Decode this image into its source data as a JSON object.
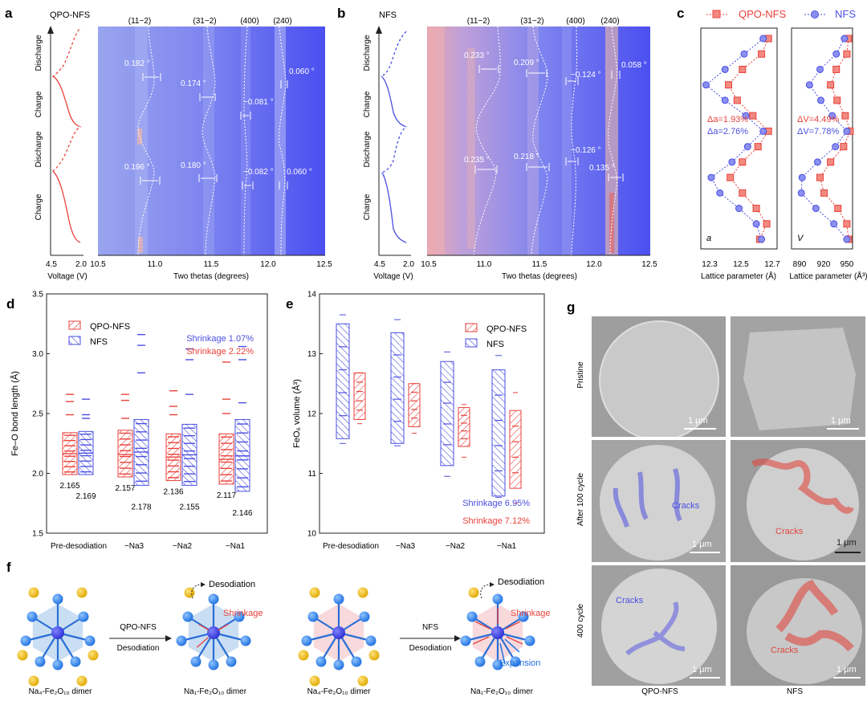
{
  "panels": {
    "a": {
      "letter": "a",
      "sample": "QPO-NFS",
      "peaks": [
        "(11−2)",
        "(31−2)",
        "(400)",
        "(240)"
      ],
      "states": [
        "Discharge",
        "Charge",
        "Discharge",
        "Charge"
      ],
      "voltage_ticks": [
        "4.5",
        "2.0"
      ],
      "voltage_label": "Voltage (V)",
      "theta_ticks": [
        "10.5",
        "11.0",
        "11.5",
        "12.0",
        "12.5"
      ],
      "theta_label": "Two thetas (degrees)",
      "shifts": [
        "0.182 °",
        "0.174 °",
        "−0.081 °",
        "0.060 °",
        "0.196 °",
        "0.180 °",
        "−0.082 °",
        "0.060 °"
      ]
    },
    "b": {
      "letter": "b",
      "sample": "NFS",
      "peaks": [
        "(11−2)",
        "(31−2)",
        "(400)",
        "(240)"
      ],
      "states": [
        "Discharge",
        "Charge",
        "Discharge",
        "Charge"
      ],
      "voltage_ticks": [
        "4.5",
        "2.0"
      ],
      "voltage_label": "Voltage (V)",
      "theta_ticks": [
        "10.5",
        "11.0",
        "11.5",
        "12.0",
        "12.5"
      ],
      "theta_label": "Two thetas (degrees)",
      "shifts": [
        "0.233 °",
        "0.209 °",
        "−0.124 °",
        "0.058 °",
        "0.235 °",
        "0.218 °",
        "−0.126 °",
        "0.135 °"
      ]
    },
    "c": {
      "letter": "c",
      "legend": [
        "QPO-NFS",
        "NFS"
      ],
      "left": {
        "ticks": [
          "12.3",
          "12.5",
          "12.7"
        ],
        "xlabel": "Lattice parameter (Å)",
        "corner": "a",
        "deltas": [
          "Δa=1.93%",
          "Δa=2.76%"
        ]
      },
      "right": {
        "ticks": [
          "890",
          "920",
          "950"
        ],
        "xlabel": "Lattice parameter (Å³)",
        "corner": "V",
        "deltas": [
          "ΔV=4.49%",
          "ΔV=7.78%"
        ]
      }
    },
    "d": {
      "letter": "d",
      "ylabel": "Fe–O bond length (Å)",
      "yticks": [
        "1.5",
        "2.0",
        "2.5",
        "3.0",
        "3.5"
      ],
      "categories": [
        "Pre-desodiation",
        "−Na3",
        "−Na2",
        "−Na1"
      ],
      "legend": [
        "QPO-NFS",
        "NFS"
      ],
      "shrink_nfs": "Shrinkage 1.07%",
      "shrink_qpo": "Shrinkage 2.22%",
      "qpo_means": [
        "2.165",
        "2.157",
        "2.136",
        "2.117"
      ],
      "nfs_means": [
        "2.169",
        "2.178",
        "2.155",
        "2.146"
      ]
    },
    "e": {
      "letter": "e",
      "ylabel": "FeO₆ volume (Å³)",
      "yticks": [
        "10",
        "11",
        "12",
        "13",
        "14"
      ],
      "categories": [
        "Pre-desodiation",
        "−Na3",
        "−Na2",
        "−Na1"
      ],
      "legend": [
        "QPO-NFS",
        "NFS"
      ],
      "shrink_nfs": "Shrinkage 6.95%",
      "shrink_qpo": "Shrinkage 7.12%"
    },
    "f": {
      "letter": "f",
      "arrow1_top": "QPO-NFS",
      "arrow1_bottom": "Desodiation",
      "arrow2_top": "NFS",
      "arrow2_bottom": "Desodiation",
      "desodiation": "Desodiation",
      "shrinkage": "Shrinkage",
      "expansion": "Expansion",
      "captions": [
        "Na₄-Fe₂O₁₀ dimer",
        "Na₁-Fe₂O₁₀ dimer",
        "Na₄-Fe₂O₁₀ dimer",
        "Na₁-Fe₂O₁₀ dimer"
      ]
    },
    "g": {
      "letter": "g",
      "rows": [
        "Pristine",
        "After 100 cycle",
        "400 cycle"
      ],
      "cols": [
        "QPO-NFS",
        "NFS"
      ],
      "scale": "1 μm",
      "cracks": "Cracks"
    }
  },
  "colors": {
    "red": "#e8413b",
    "blue": "#4a4fe0",
    "heat": "#5b5ff2"
  },
  "chart_data": [
    {
      "type": "line",
      "title": "",
      "xlabel": "Lattice parameter (Å)",
      "ylabel": "",
      "xlim": [
        12.28,
        12.72
      ],
      "series": [
        {
          "name": "QPO-NFS",
          "x": [
            12.67,
            12.63,
            12.52,
            12.44,
            12.49,
            12.58,
            12.67,
            12.61,
            12.52,
            12.45,
            12.52,
            12.6,
            12.66,
            12.62
          ]
        },
        {
          "name": "NFS",
          "x": [
            12.64,
            12.53,
            12.42,
            12.31,
            12.42,
            12.54,
            12.64,
            12.55,
            12.46,
            12.34,
            12.39,
            12.5,
            12.6,
            12.63
          ]
        }
      ]
    },
    {
      "type": "line",
      "title": "",
      "xlabel": "Lattice parameter (Å³)",
      "ylabel": "",
      "xlim": [
        880,
        955
      ],
      "series": [
        {
          "name": "QPO-NFS",
          "x": [
            950,
            948,
            935,
            928,
            936,
            946,
            952,
            944,
            928,
            915,
            920,
            937,
            948,
            950
          ]
        },
        {
          "name": "NFS",
          "x": [
            945,
            935,
            915,
            902,
            916,
            930,
            948,
            934,
            912,
            893,
            892,
            910,
            932,
            948
          ]
        }
      ]
    },
    {
      "type": "bar",
      "title": "",
      "ylabel": "Fe–O bond length (Å)",
      "ylim": [
        1.5,
        3.5
      ],
      "categories": [
        "Pre-desodiation",
        "−Na3",
        "−Na2",
        "−Na1"
      ],
      "series": [
        {
          "name": "QPO-NFS",
          "mean": [
            2.165,
            2.157,
            2.136,
            2.117
          ],
          "box_low": [
            1.99,
            1.97,
            1.94,
            1.91
          ],
          "box_high": [
            2.34,
            2.36,
            2.33,
            2.33
          ],
          "outliers_high": [
            [
              2.66,
              2.6,
              2.49
            ],
            [
              2.66,
              2.61,
              2.46
            ],
            [
              2.69,
              2.56,
              2.49
            ],
            [
              2.93,
              2.62,
              2.5
            ]
          ]
        },
        {
          "name": "NFS",
          "mean": [
            2.169,
            2.178,
            2.155,
            2.146
          ],
          "box_low": [
            1.99,
            1.9,
            1.9,
            1.85
          ],
          "box_high": [
            2.35,
            2.45,
            2.41,
            2.45
          ],
          "outliers_high": [
            [
              2.62,
              2.49,
              2.46
            ],
            [
              3.16,
              3.07,
              2.84
            ],
            [
              3.04,
              2.95,
              2.66
            ],
            [
              3.06,
              2.95,
              2.59
            ]
          ]
        }
      ]
    },
    {
      "type": "bar",
      "title": "",
      "ylabel": "FeO₆ volume (Å³)",
      "ylim": [
        10,
        14
      ],
      "categories": [
        "Pre-desodiation",
        "−Na3",
        "−Na2",
        "−Na1"
      ],
      "series": [
        {
          "name": "NFS",
          "box_low": [
            11.58,
            11.5,
            11.13,
            10.62
          ],
          "box_high": [
            13.5,
            13.35,
            12.87,
            12.73
          ],
          "whisker_low": [
            11.5,
            11.46,
            10.95,
            10.6
          ],
          "whisker_high": [
            13.65,
            13.57,
            13.03,
            12.97
          ]
        },
        {
          "name": "QPO-NFS",
          "box_low": [
            11.9,
            11.78,
            11.45,
            10.75
          ],
          "box_high": [
            12.68,
            12.5,
            12.1,
            12.05
          ],
          "whisker_low": [
            11.83,
            11.67,
            11.27,
            10.5
          ],
          "whisker_high": [
            12.68,
            12.5,
            12.15,
            12.35
          ]
        }
      ]
    }
  ]
}
